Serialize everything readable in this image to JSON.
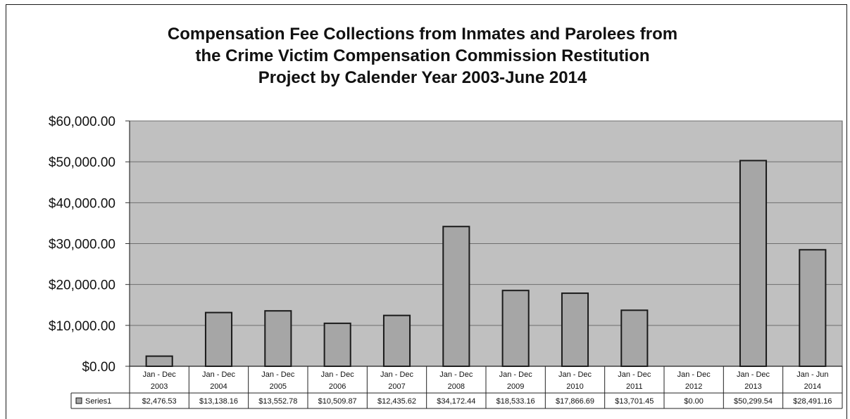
{
  "chart_data": {
    "type": "bar",
    "title_lines": [
      "Compensation Fee Collections from Inmates and Parolees from",
      "the Crime Victim Compensation Commission Restitution",
      "Project by Calender Year 2003-June 2014"
    ],
    "categories": [
      [
        "Jan - Dec",
        "2003"
      ],
      [
        "Jan - Dec",
        "2004"
      ],
      [
        "Jan - Dec",
        "2005"
      ],
      [
        "Jan - Dec",
        "2006"
      ],
      [
        "Jan - Dec",
        "2007"
      ],
      [
        "Jan - Dec",
        "2008"
      ],
      [
        "Jan - Dec",
        "2009"
      ],
      [
        "Jan - Dec",
        "2010"
      ],
      [
        "Jan - Dec",
        "2011"
      ],
      [
        "Jan - Dec",
        "2012"
      ],
      [
        "Jan - Dec",
        "2013"
      ],
      [
        "Jan - Jun",
        "2014"
      ]
    ],
    "series": [
      {
        "name": "Series1",
        "values": [
          2476.53,
          13138.16,
          13552.78,
          10509.87,
          12435.62,
          34172.44,
          18533.16,
          17866.69,
          13701.45,
          0.0,
          50299.54,
          28491.16
        ],
        "value_labels": [
          "$2,476.53",
          "$13,138.16",
          "$13,552.78",
          "$10,509.87",
          "$12,435.62",
          "$34,172.44",
          "$18,533.16",
          "$17,866.69",
          "$13,701.45",
          "$0.00",
          "$50,299.54",
          "$28,491.16"
        ]
      }
    ],
    "y_ticks": [
      0,
      10000,
      20000,
      30000,
      40000,
      50000,
      60000
    ],
    "y_tick_labels": [
      "$0.00",
      "$10,000.00",
      "$20,000.00",
      "$30,000.00",
      "$40,000.00",
      "$50,000.00",
      "$60,000.00"
    ],
    "ylim": [
      0,
      60000
    ],
    "xlabel": "",
    "ylabel": "",
    "grid": true,
    "legend": "data-table",
    "colors": {
      "plot_background": "#c0c0c0",
      "bar_fill": "#a6a6a6",
      "bar_stroke": "#1a1a1a",
      "gridline": "#6e6e6e",
      "legend_key": "#a6a6a6"
    }
  }
}
